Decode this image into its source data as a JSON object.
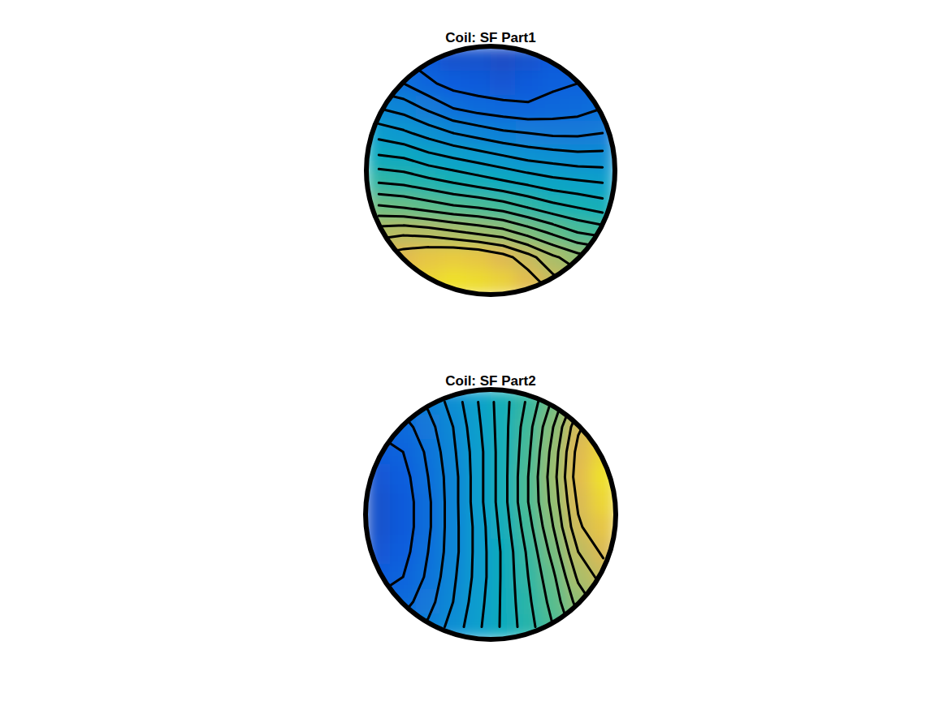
{
  "chart_data": [
    {
      "type": "contour",
      "title": "Coil: SF Part1",
      "tick_labels": false,
      "xlim": [
        -1,
        1
      ],
      "ylim": [
        -1,
        1
      ],
      "clim": [
        0,
        1
      ],
      "levels": [
        0.15,
        0.2,
        0.25,
        0.3,
        0.35,
        0.4,
        0.45,
        0.5,
        0.55,
        0.6,
        0.65,
        0.7,
        0.75,
        0.8,
        0.85
      ],
      "cells": [
        [
          0.18,
          0.15,
          0.12,
          0.1,
          0.1,
          0.09,
          0.1,
          0.12,
          0.13,
          0.15
        ],
        [
          0.22,
          0.2,
          0.16,
          0.13,
          0.12,
          0.11,
          0.12,
          0.14,
          0.15,
          0.17
        ],
        [
          0.3,
          0.28,
          0.24,
          0.2,
          0.18,
          0.17,
          0.16,
          0.17,
          0.18,
          0.2
        ],
        [
          0.38,
          0.36,
          0.33,
          0.3,
          0.28,
          0.26,
          0.25,
          0.24,
          0.24,
          0.25
        ],
        [
          0.46,
          0.45,
          0.42,
          0.4,
          0.38,
          0.36,
          0.34,
          0.33,
          0.32,
          0.32
        ],
        [
          0.55,
          0.54,
          0.52,
          0.5,
          0.48,
          0.46,
          0.44,
          0.42,
          0.41,
          0.4
        ],
        [
          0.66,
          0.65,
          0.63,
          0.61,
          0.6,
          0.58,
          0.55,
          0.52,
          0.5,
          0.48
        ],
        [
          0.78,
          0.79,
          0.78,
          0.76,
          0.74,
          0.72,
          0.68,
          0.64,
          0.6,
          0.58
        ],
        [
          0.86,
          0.88,
          0.9,
          0.91,
          0.9,
          0.87,
          0.82,
          0.76,
          0.72,
          0.7
        ],
        [
          0.88,
          0.9,
          0.93,
          0.95,
          0.94,
          0.92,
          0.88,
          0.82,
          0.78,
          0.75
        ]
      ]
    },
    {
      "type": "contour",
      "title": "Coil: SF Part2",
      "tick_labels": false,
      "xlim": [
        -1,
        1
      ],
      "ylim": [
        -1,
        1
      ],
      "clim": [
        0,
        1
      ],
      "levels": [
        0.15,
        0.2,
        0.25,
        0.3,
        0.35,
        0.4,
        0.45,
        0.5,
        0.55,
        0.6,
        0.65,
        0.7,
        0.75,
        0.8,
        0.85
      ],
      "cells": [
        [
          0.2,
          0.22,
          0.26,
          0.32,
          0.4,
          0.48,
          0.56,
          0.66,
          0.78,
          0.85
        ],
        [
          0.16,
          0.18,
          0.23,
          0.3,
          0.39,
          0.48,
          0.58,
          0.7,
          0.84,
          0.9
        ],
        [
          0.13,
          0.15,
          0.21,
          0.29,
          0.38,
          0.48,
          0.59,
          0.72,
          0.87,
          0.93
        ],
        [
          0.11,
          0.13,
          0.2,
          0.28,
          0.38,
          0.48,
          0.6,
          0.73,
          0.88,
          0.95
        ],
        [
          0.1,
          0.12,
          0.19,
          0.28,
          0.38,
          0.48,
          0.6,
          0.72,
          0.86,
          0.93
        ],
        [
          0.1,
          0.12,
          0.19,
          0.28,
          0.37,
          0.47,
          0.58,
          0.7,
          0.84,
          0.9
        ],
        [
          0.11,
          0.13,
          0.2,
          0.28,
          0.37,
          0.46,
          0.56,
          0.67,
          0.8,
          0.86
        ],
        [
          0.13,
          0.15,
          0.21,
          0.29,
          0.37,
          0.46,
          0.55,
          0.64,
          0.76,
          0.82
        ],
        [
          0.16,
          0.18,
          0.23,
          0.3,
          0.38,
          0.46,
          0.54,
          0.62,
          0.72,
          0.78
        ],
        [
          0.2,
          0.22,
          0.26,
          0.32,
          0.39,
          0.46,
          0.53,
          0.6,
          0.68,
          0.74
        ]
      ]
    }
  ]
}
